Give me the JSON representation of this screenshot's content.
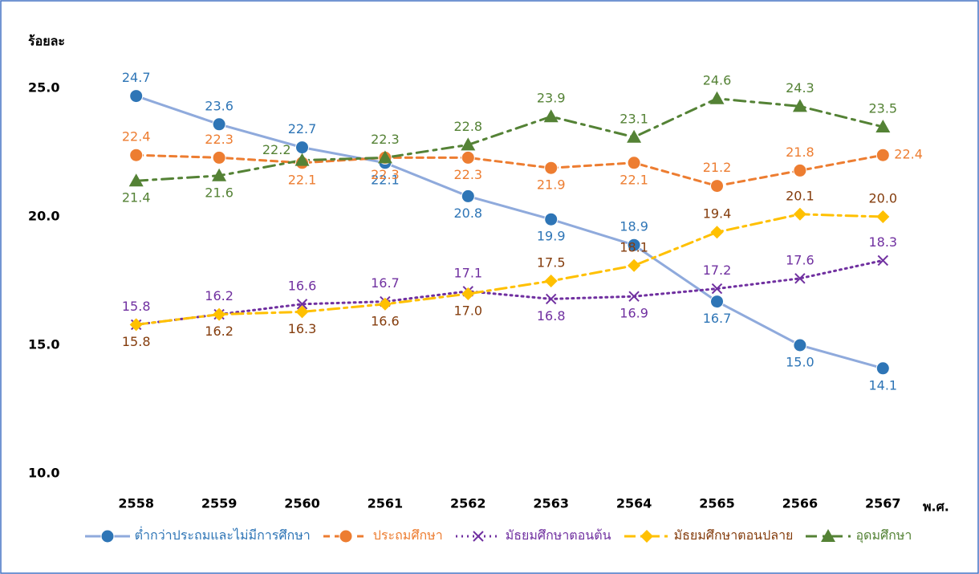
{
  "chart_data": {
    "type": "line",
    "y_axis_label": "ร้อยละ",
    "x_axis_label": "พ.ศ.",
    "categories": [
      "2558",
      "2559",
      "2560",
      "2561",
      "2562",
      "2563",
      "2564",
      "2565",
      "2566",
      "2567"
    ],
    "ylim": [
      10,
      25
    ],
    "yticks": [
      {
        "value": 10,
        "label": "10.0"
      },
      {
        "value": 15,
        "label": "15.0"
      },
      {
        "value": 20,
        "label": "20.0"
      },
      {
        "value": 25,
        "label": "25.0"
      }
    ],
    "grid": false,
    "legend": "bottom",
    "series": [
      {
        "name": "ต่ำกว่าประถมและไม่มีการศึกษา",
        "color": "#2e75b6",
        "line_color": "#8faadc",
        "label_color": "#2e75b6",
        "values": [
          24.7,
          23.6,
          22.7,
          22.1,
          20.8,
          19.9,
          18.9,
          16.7,
          15.0,
          14.1
        ],
        "value_labels": [
          "24.7",
          "23.6",
          "22.7",
          "22.1",
          "20.8",
          "19.9",
          "18.9",
          "16.7",
          "15.0",
          "14.1"
        ]
      },
      {
        "name": "ประถมศึกษา",
        "color": "#ed7d31",
        "line_color": "#ed7d31",
        "label_color": "#ed7d31",
        "values": [
          22.4,
          22.3,
          22.1,
          22.3,
          22.3,
          21.9,
          22.1,
          21.2,
          21.8,
          22.4
        ],
        "value_labels": [
          "22.4",
          "22.3",
          "22.1",
          "22.3",
          "22.3",
          "21.9",
          "22.1",
          "21.2",
          "21.8",
          "22.4"
        ]
      },
      {
        "name": "มัธยมศึกษาตอนต้น",
        "color": "#7030a0",
        "line_color": "#7030a0",
        "label_color": "#7030a0",
        "values": [
          15.8,
          16.2,
          16.6,
          16.7,
          17.1,
          16.8,
          16.9,
          17.2,
          17.6,
          18.3
        ],
        "value_labels": [
          "15.8",
          "16.2",
          "16.6",
          "16.7",
          "17.1",
          "16.8",
          "16.9",
          "17.2",
          "17.6",
          "18.3"
        ]
      },
      {
        "name": "มัธยมศึกษาตอนปลาย",
        "color": "#ffc000",
        "line_color": "#ffc000",
        "label_color": "#843c0c",
        "values": [
          15.8,
          16.2,
          16.3,
          16.6,
          17.0,
          17.5,
          18.1,
          19.4,
          20.1,
          20.0
        ],
        "value_labels": [
          "15.8",
          "16.2",
          "16.3",
          "16.6",
          "17.0",
          "17.5",
          "18.1",
          "19.4",
          "20.1",
          "20.0"
        ]
      },
      {
        "name": "อุดมศึกษา",
        "color": "#548235",
        "line_color": "#548235",
        "label_color": "#548235",
        "values": [
          21.4,
          21.6,
          22.2,
          22.3,
          22.8,
          23.9,
          23.1,
          24.6,
          24.3,
          23.5
        ],
        "value_labels": [
          "21.4",
          "21.6",
          "22.2",
          "22.3",
          "22.8",
          "23.9",
          "23.1",
          "24.6",
          "24.3",
          "23.5"
        ]
      }
    ]
  }
}
